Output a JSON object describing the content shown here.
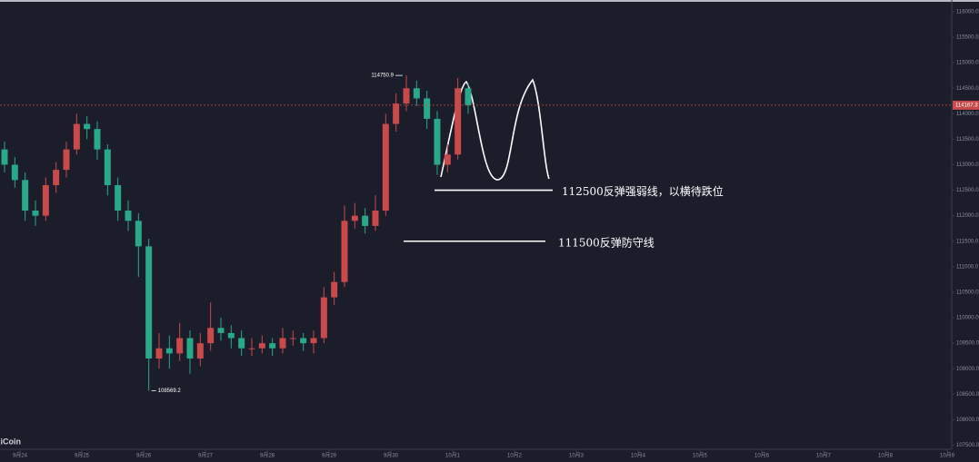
{
  "chart_data": {
    "type": "candlestick",
    "watermark": "AiCoin",
    "up_color": "#c94a4a",
    "down_color": "#2aa88a",
    "x": [
      -0.25,
      -0.0833,
      0.0833,
      0.25,
      0.4167,
      0.5833,
      0.75,
      0.9167,
      1.0833,
      1.25,
      1.4167,
      1.5833,
      1.75,
      1.9167,
      2.0833,
      2.25,
      2.4167,
      2.5833,
      2.75,
      2.9167,
      3.0833,
      3.25,
      3.4167,
      3.5833,
      3.75,
      3.9167,
      4.0833,
      4.25,
      4.4167,
      4.5833,
      4.75,
      4.9167,
      5.0833,
      5.25,
      5.4167,
      5.5833,
      5.75,
      5.9167,
      6.0833,
      6.25,
      6.4167,
      6.5833,
      6.75,
      6.9167,
      7.0833,
      7.25
    ],
    "open": [
      113300,
      113000,
      112700,
      112100,
      112000,
      112600,
      112900,
      113300,
      113800,
      113700,
      113300,
      112600,
      112100,
      111900,
      111400,
      109200,
      109400,
      109300,
      109600,
      109200,
      109500,
      109800,
      109700,
      109600,
      109400,
      109400,
      109500,
      109400,
      109600,
      109600,
      109500,
      109600,
      110400,
      110700,
      111900,
      112000,
      111800,
      112100,
      113800,
      114200,
      114500,
      114300,
      113900,
      113000,
      113200,
      114500
    ],
    "high": [
      113450,
      113150,
      112850,
      112300,
      112750,
      113050,
      113450,
      114000,
      113950,
      113850,
      113400,
      112750,
      112300,
      112050,
      111550,
      109700,
      109650,
      109900,
      109750,
      109700,
      110300,
      110000,
      109850,
      109750,
      109600,
      109650,
      109600,
      109800,
      109750,
      109700,
      109750,
      110600,
      110900,
      112200,
      112250,
      112150,
      112400,
      114000,
      114400,
      114750.9,
      114650,
      114450,
      114050,
      113400,
      114700,
      114600
    ],
    "low": [
      112850,
      112550,
      111900,
      111800,
      111900,
      112450,
      112750,
      113200,
      113500,
      113100,
      112400,
      111900,
      111700,
      110800,
      108569.2,
      109000,
      109000,
      109150,
      108900,
      109050,
      109350,
      109550,
      109400,
      109250,
      109250,
      109300,
      109250,
      109300,
      109450,
      109350,
      109300,
      109500,
      110250,
      110600,
      111750,
      111650,
      111700,
      112000,
      113650,
      114050,
      114150,
      113700,
      112800,
      112850,
      113100,
      114000
    ],
    "close": [
      113000,
      112700,
      112100,
      112000,
      112600,
      112900,
      113300,
      113800,
      113700,
      113300,
      112600,
      112100,
      111900,
      111400,
      109200,
      109400,
      109300,
      109600,
      109200,
      109500,
      109800,
      109700,
      109600,
      109400,
      109400,
      109500,
      109400,
      109600,
      109600,
      109500,
      109600,
      110400,
      110700,
      111900,
      112000,
      111800,
      112100,
      113800,
      114200,
      114500,
      114300,
      113900,
      113000,
      113200,
      114500,
      114167.3
    ],
    "xlim": [
      -0.3235,
      15.0735
    ],
    "xticks": [
      {
        "value": 0,
        "label": "9月24"
      },
      {
        "value": 1,
        "label": "9月25"
      },
      {
        "value": 2,
        "label": "9月26"
      },
      {
        "value": 3,
        "label": "9月27"
      },
      {
        "value": 4,
        "label": "9月28"
      },
      {
        "value": 5,
        "label": "9月29"
      },
      {
        "value": 6,
        "label": "9月30"
      },
      {
        "value": 7,
        "label": "10月1"
      },
      {
        "value": 8,
        "label": "10月2"
      },
      {
        "value": 9,
        "label": "10月3"
      },
      {
        "value": 10,
        "label": "10月4"
      },
      {
        "value": 11,
        "label": "10月5"
      },
      {
        "value": 12,
        "label": "10月6"
      },
      {
        "value": 13,
        "label": "10月7"
      },
      {
        "value": 14,
        "label": "10月8"
      },
      {
        "value": 15,
        "label": "10月9"
      }
    ],
    "ylim": [
      107420,
      116230
    ],
    "yticks": [
      {
        "value": 107500,
        "label": "107500.0"
      },
      {
        "value": 108000,
        "label": "108000.0"
      },
      {
        "value": 108500,
        "label": "108500.0"
      },
      {
        "value": 109000,
        "label": "109000.0"
      },
      {
        "value": 109500,
        "label": "109500.0"
      },
      {
        "value": 110000,
        "label": "110000.0"
      },
      {
        "value": 110500,
        "label": "110500.0"
      },
      {
        "value": 111000,
        "label": "111000.0"
      },
      {
        "value": 111500,
        "label": "111500.0"
      },
      {
        "value": 112000,
        "label": "112000.0"
      },
      {
        "value": 112500,
        "label": "112500.0"
      },
      {
        "value": 113000,
        "label": "113000.0"
      },
      {
        "value": 113500,
        "label": "113500.0"
      },
      {
        "value": 114000,
        "label": "114000.0"
      },
      {
        "value": 114500,
        "label": "114500.0"
      },
      {
        "value": 115000,
        "label": "115000.0"
      },
      {
        "value": 115500,
        "label": "115500.0"
      },
      {
        "value": 116000,
        "label": "116000.0"
      }
    ],
    "annotations": [
      {
        "text": "112500反弹强弱线，以横待跌位",
        "value": 112500
      },
      {
        "text": "111500反弹防守线",
        "value": 111500
      }
    ]
  }
}
